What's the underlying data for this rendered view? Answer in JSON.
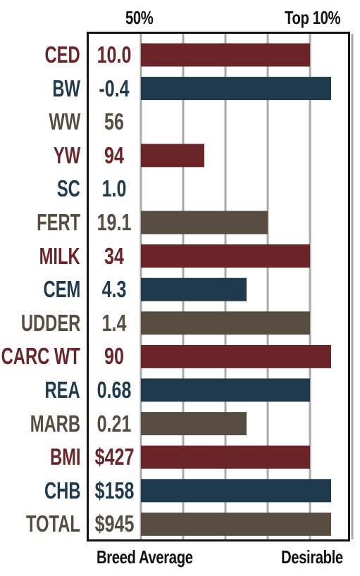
{
  "header": {
    "left": "50%",
    "right": "Top 10%"
  },
  "footer": {
    "left": "Breed Average",
    "right": "Desirable"
  },
  "colors": {
    "red": "#6b2427",
    "blue": "#1f3a4c",
    "brown": "#564c40",
    "grid": "#aaaaaa"
  },
  "chart_data": {
    "type": "bar",
    "orientation": "horizontal",
    "categories": [
      "CED",
      "BW",
      "WW",
      "YW",
      "SC",
      "FERT",
      "MILK",
      "CEM",
      "UDDER",
      "CARC WT",
      "REA",
      "MARB",
      "BMI",
      "CHB",
      "TOTAL"
    ],
    "display_values": [
      "10.0",
      "-0.4",
      "56",
      "94",
      "1.0",
      "19.1",
      "34",
      "4.3",
      "1.4",
      "90",
      "0.68",
      "0.21",
      "$427",
      "$158",
      "$945"
    ],
    "bar_levels": [
      4.0,
      4.5,
      0,
      1.5,
      0,
      3.0,
      4.0,
      2.5,
      4.0,
      4.5,
      4.0,
      2.5,
      4.0,
      4.5,
      4.5
    ],
    "row_colors": [
      "red",
      "blue",
      "brown",
      "red",
      "blue",
      "brown",
      "red",
      "blue",
      "brown",
      "red",
      "blue",
      "brown",
      "red",
      "blue",
      "brown"
    ],
    "xlim": [
      0,
      4.5
    ],
    "grid": true,
    "xlabel_left": "Breed Average",
    "xlabel_right": "Desirable",
    "top_left": "50%",
    "top_right": "Top 10%"
  }
}
